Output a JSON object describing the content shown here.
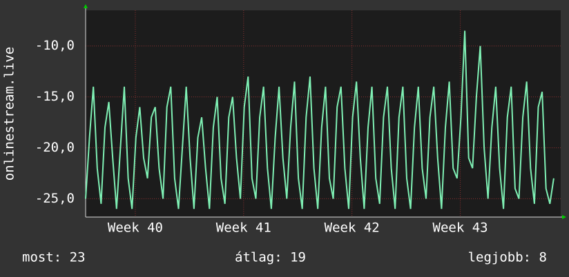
{
  "chart_data": {
    "type": "line",
    "y_label": "onlinestream.live",
    "color": "#7ff0b4",
    "x": [
      0,
      0.25,
      0.5,
      0.75,
      1,
      1.25,
      1.5,
      1.75,
      2,
      2.25,
      2.5,
      2.75,
      3,
      3.25,
      3.5,
      3.75,
      4,
      4.25,
      4.5,
      4.75,
      5,
      5.25,
      5.5,
      5.75,
      6,
      6.25,
      6.5,
      6.75,
      7,
      7.25,
      7.5,
      7.75,
      8,
      8.25,
      8.5,
      8.75,
      9,
      9.25,
      9.5,
      9.75,
      10,
      10.25,
      10.5,
      10.75,
      11,
      11.25,
      11.5,
      11.75,
      12,
      12.25,
      12.5,
      12.75,
      13,
      13.25,
      13.5,
      13.75,
      14,
      14.25,
      14.5,
      14.75,
      15,
      15.25,
      15.5,
      15.75,
      16,
      16.25,
      16.5,
      16.75,
      17,
      17.25,
      17.5,
      17.75,
      18,
      18.25,
      18.5,
      18.75,
      19,
      19.25,
      19.5,
      19.75,
      20,
      20.25,
      20.5,
      20.75,
      21,
      21.25,
      21.5,
      21.75,
      22,
      22.25,
      22.5,
      22.75,
      23,
      23.25,
      23.5,
      23.75,
      24,
      24.25,
      24.5,
      24.75,
      25,
      25.25,
      25.5,
      25.75,
      26,
      26.25,
      26.5,
      26.75,
      27,
      27.25,
      27.5,
      27.75,
      28,
      28.25,
      28.5,
      28.75,
      29,
      29.25,
      29.5,
      29.75,
      30,
      30.25
    ],
    "values": [
      -25,
      -19,
      -14,
      -22,
      -25.5,
      -18,
      -15.5,
      -21,
      -26,
      -20,
      -14,
      -23,
      -26,
      -19,
      -16,
      -21,
      -23,
      -17,
      -16,
      -22,
      -25,
      -16,
      -14,
      -23,
      -26,
      -20,
      -14,
      -21,
      -26,
      -19,
      -17,
      -22,
      -26,
      -18,
      -15,
      -23,
      -25.5,
      -17,
      -15,
      -21,
      -25,
      -16,
      -13,
      -23,
      -25,
      -17,
      -14,
      -22,
      -26,
      -19,
      -14,
      -21,
      -25,
      -18,
      -13.5,
      -23,
      -26,
      -17,
      -13,
      -22,
      -26,
      -18,
      -14,
      -23,
      -25,
      -16,
      -14,
      -22,
      -26,
      -17,
      -13.5,
      -21,
      -26,
      -18,
      -14,
      -23,
      -25.5,
      -17,
      -14,
      -22,
      -26,
      -17,
      -14,
      -23,
      -26,
      -18,
      -14,
      -22,
      -25,
      -17,
      -14,
      -21,
      -26,
      -18,
      -13.5,
      -22,
      -23,
      -17,
      -8.5,
      -21,
      -22,
      -15,
      -10,
      -20,
      -25,
      -18,
      -14,
      -22,
      -26,
      -17,
      -14,
      -24,
      -25,
      -17,
      -13.5,
      -22,
      -25.5,
      -16,
      -14.5,
      -24,
      -25.5,
      -23
    ],
    "xlim": [
      0,
      30.7
    ],
    "xticks": [
      {
        "value": 3.21,
        "label": "Week 40"
      },
      {
        "value": 10.21,
        "label": "Week 41"
      },
      {
        "value": 17.21,
        "label": "Week 42"
      },
      {
        "value": 24.21,
        "label": "Week 43"
      }
    ],
    "ylim": [
      -26.8,
      -6.5
    ],
    "yticks": [
      {
        "value": -10,
        "label": "-10,0"
      },
      {
        "value": -15,
        "label": "-15,0"
      },
      {
        "value": -20,
        "label": "-20,0"
      },
      {
        "value": -25,
        "label": "-25,0"
      }
    ],
    "grid": true,
    "footer": [
      "most: 23",
      "átlag: 19",
      "legjobb: 8"
    ]
  }
}
